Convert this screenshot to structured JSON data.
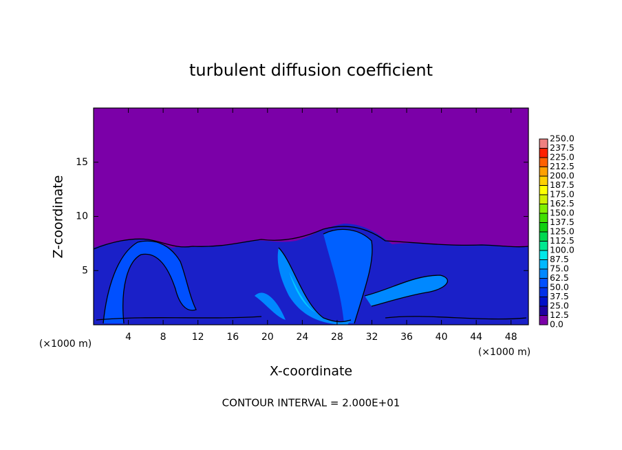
{
  "chart_data": {
    "type": "contour",
    "title": "turbulent diffusion coefficient",
    "x_label": "X-coordinate",
    "y_label": "Z-coordinate",
    "x_unit": "(×1000 m)",
    "footer": "CONTOUR INTERVAL = 2.000E+01",
    "xlim": [
      0,
      50
    ],
    "ylim": [
      0,
      20
    ],
    "xticks": [
      4,
      8,
      12,
      16,
      20,
      24,
      28,
      32,
      36,
      40,
      44,
      48
    ],
    "yticks": [
      5,
      10,
      15
    ],
    "colorbar": {
      "levels": [
        {
          "value": 0,
          "label": "0.0"
        },
        {
          "value": 12.5,
          "label": "12.5"
        },
        {
          "value": 25,
          "label": "25.0"
        },
        {
          "value": 37.5,
          "label": "37.5"
        },
        {
          "value": 50,
          "label": "50.0"
        },
        {
          "value": 62.5,
          "label": "62.5"
        },
        {
          "value": 75,
          "label": "75.0"
        },
        {
          "value": 87.5,
          "label": "87.5"
        },
        {
          "value": 100,
          "label": "100.0"
        },
        {
          "value": 112.5,
          "label": "112.5"
        },
        {
          "value": 125,
          "label": "125.0"
        },
        {
          "value": 137.5,
          "label": "137.5"
        },
        {
          "value": 150,
          "label": "150.0"
        },
        {
          "value": 162.5,
          "label": "162.5"
        },
        {
          "value": 175,
          "label": "175.0"
        },
        {
          "value": 187.5,
          "label": "187.5"
        },
        {
          "value": 200,
          "label": "200.0"
        },
        {
          "value": 212.5,
          "label": "212.5"
        },
        {
          "value": 225,
          "label": "225.0"
        },
        {
          "value": 237.5,
          "label": "237.5"
        },
        {
          "value": 250,
          "label": "250.0"
        }
      ],
      "colors": [
        "#7b00a8",
        "#2000a0",
        "#0010c8",
        "#0030e8",
        "#0050ff",
        "#0088ff",
        "#00b8ff",
        "#00e8e8",
        "#00e890",
        "#00d850",
        "#10d010",
        "#40e000",
        "#80f000",
        "#d0f000",
        "#ffff00",
        "#ffd000",
        "#ffa000",
        "#ff6000",
        "#ff2000",
        "#f08080"
      ]
    }
  }
}
